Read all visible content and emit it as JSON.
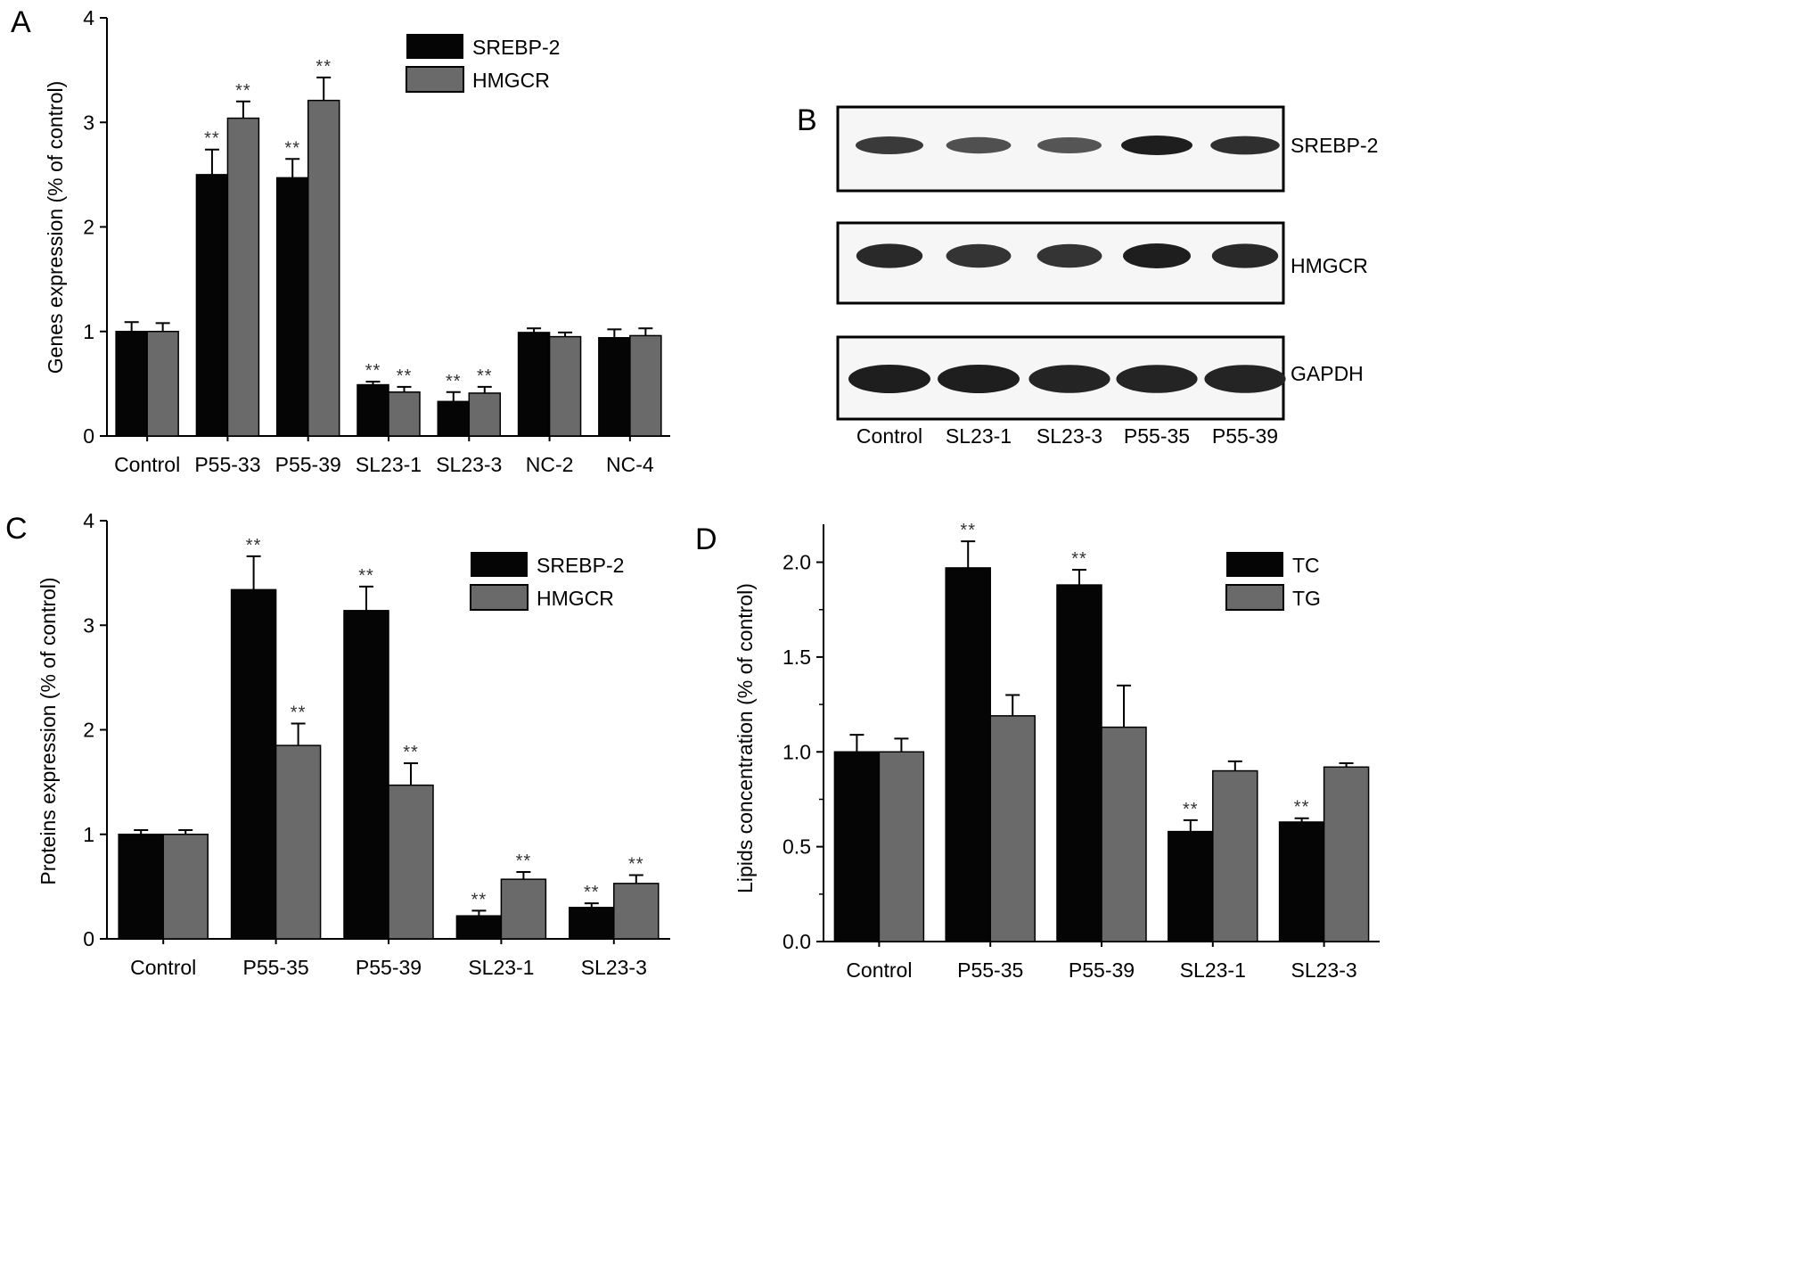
{
  "colors": {
    "series_dark": "#050505",
    "series_gray": "#6a6a6a",
    "axis": "#000000",
    "band": "#1c1c1c"
  },
  "chart_data": [
    {
      "panel": "A",
      "type": "bar",
      "categories": [
        "Control",
        "P55-33",
        "P55-39",
        "SL23-1",
        "SL23-3",
        "NC-2",
        "NC-4"
      ],
      "series": [
        {
          "name": "SREBP-2",
          "values": [
            1.0,
            2.5,
            2.47,
            0.49,
            0.33,
            0.99,
            0.94
          ],
          "errors": [
            0.09,
            0.24,
            0.18,
            0.03,
            0.09,
            0.04,
            0.08
          ],
          "sig": [
            "",
            "**",
            "**",
            "**",
            "**",
            "",
            ""
          ]
        },
        {
          "name": "HMGCR",
          "values": [
            1.0,
            3.04,
            3.21,
            0.42,
            0.41,
            0.95,
            0.96
          ],
          "errors": [
            0.08,
            0.16,
            0.22,
            0.05,
            0.06,
            0.04,
            0.07
          ],
          "sig": [
            "",
            "**",
            "**",
            "**",
            "**",
            "",
            ""
          ]
        }
      ],
      "xlabel": "",
      "ylabel": "Genes expression (% of control)",
      "ylim": [
        0,
        4
      ],
      "yticks": [
        "0",
        "1",
        "2",
        "3",
        "4"
      ],
      "legend_position": "top-right",
      "grid": false
    },
    {
      "panel": "C",
      "type": "bar",
      "categories": [
        "Control",
        "P55-35",
        "P55-39",
        "SL23-1",
        "SL23-3"
      ],
      "series": [
        {
          "name": "SREBP-2",
          "values": [
            1.0,
            3.34,
            3.14,
            0.22,
            0.3
          ],
          "errors": [
            0.04,
            0.32,
            0.23,
            0.05,
            0.04
          ],
          "sig": [
            "",
            "**",
            "**",
            "**",
            "**"
          ]
        },
        {
          "name": "HMGCR",
          "values": [
            1.0,
            1.85,
            1.47,
            0.57,
            0.53
          ],
          "errors": [
            0.04,
            0.21,
            0.21,
            0.07,
            0.08
          ],
          "sig": [
            "",
            "**",
            "**",
            "**",
            "**"
          ]
        }
      ],
      "xlabel": "",
      "ylabel": "Proteins expression (% of control)",
      "ylim": [
        0,
        4
      ],
      "yticks": [
        "0",
        "1",
        "2",
        "3",
        "4"
      ],
      "legend_position": "top-right",
      "grid": false
    },
    {
      "panel": "D",
      "type": "bar",
      "categories": [
        "Control",
        "P55-35",
        "P55-39",
        "SL23-1",
        "SL23-3"
      ],
      "series": [
        {
          "name": "TC",
          "values": [
            1.0,
            1.97,
            1.88,
            0.58,
            0.63
          ],
          "errors": [
            0.09,
            0.14,
            0.08,
            0.06,
            0.02
          ],
          "sig": [
            "",
            "**",
            "**",
            "**",
            "**"
          ]
        },
        {
          "name": "TG",
          "values": [
            1.0,
            1.19,
            1.13,
            0.9,
            0.92
          ],
          "errors": [
            0.07,
            0.11,
            0.22,
            0.05,
            0.02
          ],
          "sig": [
            "",
            "",
            "",
            "",
            ""
          ]
        }
      ],
      "xlabel": "",
      "ylabel": "Lipids concentration (% of control)",
      "ylim": [
        0,
        2.2
      ],
      "yticks": [
        "0.0",
        "0.5",
        "1.0",
        "1.5",
        "2.0"
      ],
      "legend_position": "top-right",
      "grid": false
    }
  ],
  "blot": {
    "panel": "B",
    "rows": [
      "SREBP-2",
      "HMGCR",
      "GAPDH"
    ],
    "lanes": [
      "Control",
      "SL23-1",
      "SL23-3",
      "P55-35",
      "P55-39"
    ],
    "band_intensity": [
      [
        0.75,
        0.55,
        0.5,
        1.0,
        0.85
      ],
      [
        0.9,
        0.8,
        0.8,
        1.0,
        0.9
      ],
      [
        1.0,
        1.0,
        0.95,
        0.95,
        0.95
      ]
    ]
  }
}
